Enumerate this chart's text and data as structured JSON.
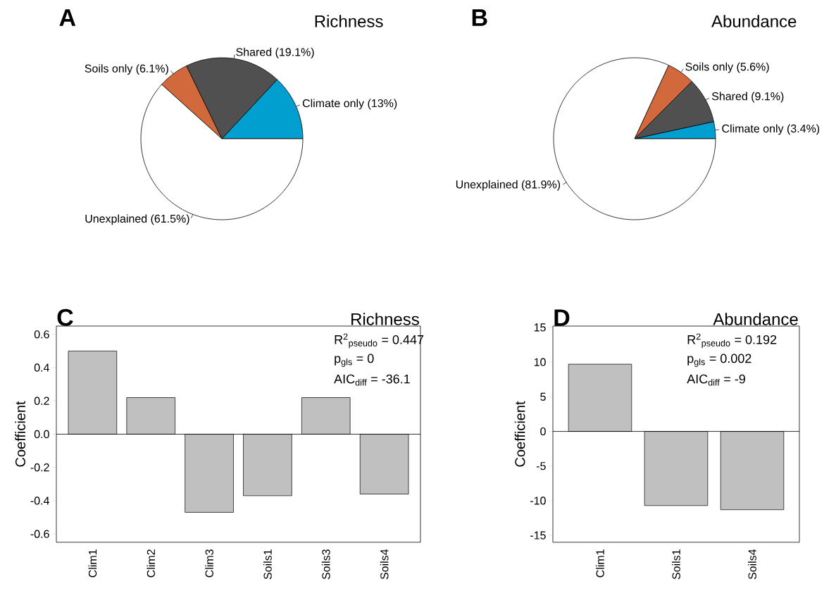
{
  "chart_data": [
    {
      "type": "pie",
      "title": "Richness",
      "annotations": [
        "A"
      ],
      "categories": [
        "Climate only (13%)",
        "Shared (19.1%)",
        "Soils only (6.1%)",
        "Unexplained (61.5%)"
      ],
      "values": [
        13,
        19.1,
        6.1,
        61.5
      ],
      "colors": [
        "#009fd0",
        "#505050",
        "#d2693c",
        "#ffffff"
      ]
    },
    {
      "type": "pie",
      "title": "Abundance",
      "annotations": [
        "B"
      ],
      "categories": [
        "Climate only (3.4%)",
        "Shared (9.1%)",
        "Soils only (5.6%)",
        "Unexplained (81.9%)"
      ],
      "values": [
        3.4,
        9.1,
        5.6,
        81.9
      ],
      "colors": [
        "#009fd0",
        "#505050",
        "#d2693c",
        "#ffffff"
      ]
    },
    {
      "type": "bar",
      "title": "Richness",
      "annotations": [
        "C",
        "R$^{2}$$_{pseudo}$ = 0.447",
        "p$_{gls}$ = 0",
        "AIC$_{diff}$ = -36.1"
      ],
      "ylabel": "Coefficient",
      "categories": [
        "Clim1",
        "Clim2",
        "Clim3",
        "Soils1",
        "Soils3",
        "Soils4"
      ],
      "values": [
        0.5,
        0.22,
        -0.47,
        -0.37,
        0.22,
        -0.36
      ],
      "color": "#c0c0c0",
      "ylim": [
        -0.65,
        0.65
      ],
      "yticks": [
        -0.6,
        -0.4,
        -0.2,
        {
          "value": 0,
          "label": "0.0"
        },
        0.2,
        0.4,
        0.6
      ],
      "ref_lines": [
        {
          "axis": "y",
          "value": 0
        }
      ]
    },
    {
      "type": "bar",
      "title": "Abundance",
      "annotations": [
        "D",
        "R$^{2}$$_{pseudo}$ = 0.192",
        "p$_{gls}$ = 0.002",
        "AIC$_{diff}$ = -9"
      ],
      "ylabel": "Coefficient",
      "categories": [
        "Clim1",
        "Soils1",
        "Soils4"
      ],
      "values": [
        9.7,
        -10.7,
        -11.3
      ],
      "color": "#c0c0c0",
      "ylim": [
        -16,
        15.2
      ],
      "yticks": [
        -15,
        -10,
        -5,
        0,
        5,
        10,
        15
      ],
      "ref_lines": [
        {
          "axis": "y",
          "value": 0
        }
      ]
    }
  ]
}
